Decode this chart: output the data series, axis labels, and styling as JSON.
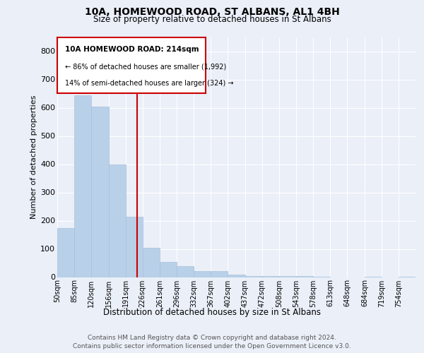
{
  "title": "10A, HOMEWOOD ROAD, ST ALBANS, AL1 4BH",
  "subtitle": "Size of property relative to detached houses in St Albans",
  "xlabel": "Distribution of detached houses by size in St Albans",
  "ylabel": "Number of detached properties",
  "footer_line1": "Contains HM Land Registry data © Crown copyright and database right 2024.",
  "footer_line2": "Contains public sector information licensed under the Open Government Licence v3.0.",
  "annotation_line1": "10A HOMEWOOD ROAD: 214sqm",
  "annotation_line2": "← 86% of detached houses are smaller (1,992)",
  "annotation_line3": "14% of semi-detached houses are larger (324) →",
  "property_size": 214,
  "bar_color": "#b8d0e8",
  "bar_edge_color": "#a8c0dc",
  "vline_color": "#cc0000",
  "background_color": "#eaeff8",
  "plot_bg_color": "#eaeff8",
  "grid_color": "#ffffff",
  "categories": [
    "50sqm",
    "85sqm",
    "120sqm",
    "156sqm",
    "191sqm",
    "226sqm",
    "261sqm",
    "296sqm",
    "332sqm",
    "367sqm",
    "402sqm",
    "437sqm",
    "472sqm",
    "508sqm",
    "543sqm",
    "578sqm",
    "613sqm",
    "648sqm",
    "684sqm",
    "719sqm",
    "754sqm"
  ],
  "bin_edges": [
    50,
    85,
    120,
    156,
    191,
    226,
    261,
    296,
    332,
    367,
    402,
    437,
    472,
    508,
    543,
    578,
    613,
    648,
    684,
    719,
    754,
    789
  ],
  "values": [
    175,
    645,
    605,
    400,
    215,
    105,
    55,
    38,
    22,
    22,
    10,
    5,
    5,
    3,
    3,
    2,
    0,
    0,
    1,
    0,
    2
  ],
  "ylim": [
    0,
    850
  ],
  "yticks": [
    0,
    100,
    200,
    300,
    400,
    500,
    600,
    700,
    800
  ]
}
